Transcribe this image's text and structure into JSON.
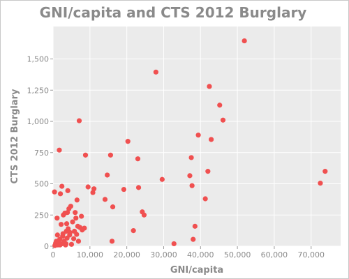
{
  "chart_data": {
    "type": "scatter",
    "title": "GNI/capita and CTS 2012 Burglary",
    "xlabel": "GNI/capita",
    "ylabel": "CTS 2012 Burglary",
    "xlim": [
      0,
      78000
    ],
    "ylim": [
      0,
      1760
    ],
    "xticks": [
      0,
      10000,
      20000,
      30000,
      40000,
      50000,
      60000,
      70000
    ],
    "xtick_labels": [
      "0",
      "10,000",
      "20,000",
      "30,000",
      "40,000",
      "50,000",
      "60,000",
      "70,000"
    ],
    "yticks": [
      0,
      250,
      500,
      750,
      1000,
      1250,
      1500
    ],
    "ytick_labels": [
      "0",
      "250",
      "500",
      "750",
      "1,000",
      "1,250",
      "1,500"
    ],
    "grid": true,
    "panel_color": "#ebebeb",
    "point_color": "#f05050",
    "series": [
      {
        "points": [
          [
            400,
            435
          ],
          [
            500,
            5
          ],
          [
            600,
            10
          ],
          [
            700,
            25
          ],
          [
            800,
            15
          ],
          [
            900,
            40
          ],
          [
            1000,
            20
          ],
          [
            1100,
            225
          ],
          [
            1200,
            90
          ],
          [
            1300,
            10
          ],
          [
            1500,
            30
          ],
          [
            1700,
            770
          ],
          [
            1800,
            55
          ],
          [
            1900,
            10
          ],
          [
            2000,
            420
          ],
          [
            2200,
            175
          ],
          [
            2400,
            480
          ],
          [
            2500,
            20
          ],
          [
            2600,
            80
          ],
          [
            2700,
            100
          ],
          [
            2800,
            250
          ],
          [
            3000,
            40
          ],
          [
            3200,
            265
          ],
          [
            3400,
            10
          ],
          [
            3500,
            20
          ],
          [
            3600,
            120
          ],
          [
            3700,
            180
          ],
          [
            3800,
            65
          ],
          [
            3900,
            270
          ],
          [
            4000,
            445
          ],
          [
            4100,
            140
          ],
          [
            4300,
            300
          ],
          [
            4500,
            90
          ],
          [
            4600,
            110
          ],
          [
            4800,
            320
          ],
          [
            5000,
            15
          ],
          [
            5300,
            195
          ],
          [
            5600,
            60
          ],
          [
            5800,
            120
          ],
          [
            6000,
            270
          ],
          [
            6200,
            225
          ],
          [
            6400,
            95
          ],
          [
            6500,
            370
          ],
          [
            6700,
            160
          ],
          [
            6900,
            40
          ],
          [
            7100,
            1005
          ],
          [
            7300,
            150
          ],
          [
            7700,
            240
          ],
          [
            7900,
            130
          ],
          [
            8500,
            145
          ],
          [
            8800,
            730
          ],
          [
            9500,
            475
          ],
          [
            10800,
            430
          ],
          [
            11100,
            460
          ],
          [
            14100,
            375
          ],
          [
            14700,
            570
          ],
          [
            15600,
            730
          ],
          [
            16000,
            40
          ],
          [
            16200,
            315
          ],
          [
            19200,
            455
          ],
          [
            20300,
            840
          ],
          [
            21800,
            125
          ],
          [
            23000,
            700
          ],
          [
            23200,
            470
          ],
          [
            24200,
            275
          ],
          [
            24700,
            250
          ],
          [
            27900,
            1395
          ],
          [
            29600,
            535
          ],
          [
            32800,
            20
          ],
          [
            37100,
            565
          ],
          [
            37500,
            710
          ],
          [
            37700,
            485
          ],
          [
            38000,
            55
          ],
          [
            38500,
            160
          ],
          [
            39400,
            890
          ],
          [
            41300,
            380
          ],
          [
            42000,
            600
          ],
          [
            42400,
            1280
          ],
          [
            42900,
            855
          ],
          [
            45200,
            1130
          ],
          [
            46100,
            1010
          ],
          [
            51900,
            1645
          ],
          [
            72500,
            505
          ],
          [
            73800,
            600
          ]
        ]
      }
    ]
  }
}
